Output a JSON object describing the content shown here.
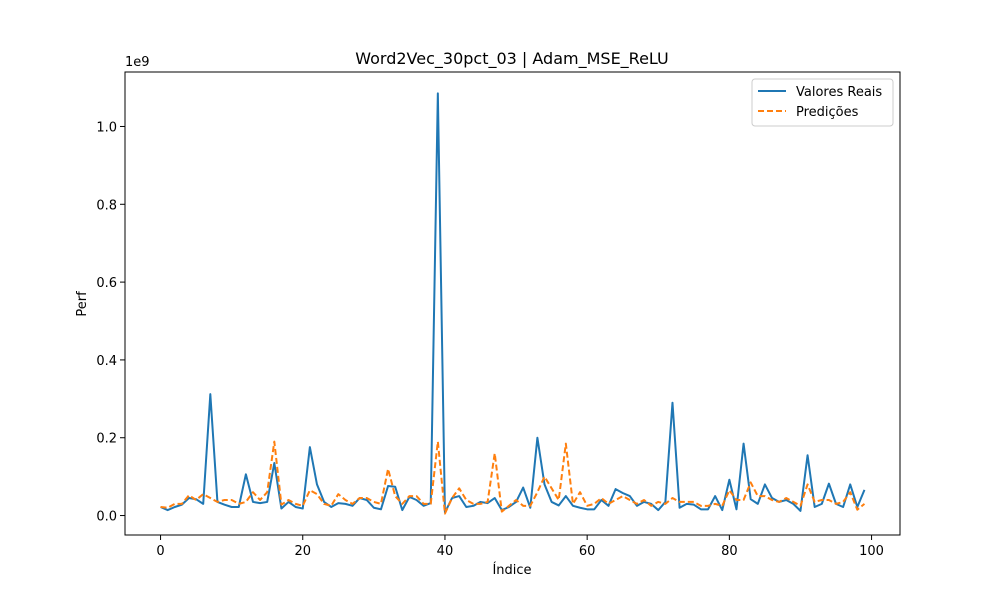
{
  "chart_data": {
    "type": "line",
    "title": "Word2Vec_30pct_03 | Adam_MSE_ReLU",
    "xlabel": "Índice",
    "ylabel": "Perf",
    "y_offset_label": "1e9",
    "xlim": [
      -5,
      104
    ],
    "ylim": [
      -0.05,
      1.14
    ],
    "x_ticks": [
      0,
      20,
      40,
      60,
      80,
      100
    ],
    "y_ticks": [
      0.0,
      0.2,
      0.4,
      0.6,
      0.8,
      1.0
    ],
    "x_tick_labels": [
      "0",
      "20",
      "40",
      "60",
      "80",
      "100"
    ],
    "y_tick_labels": [
      "0.0",
      "0.2",
      "0.4",
      "0.6",
      "0.8",
      "1.0"
    ],
    "legend_position": "top-right",
    "grid": false,
    "x": [
      0,
      1,
      2,
      3,
      4,
      5,
      6,
      7,
      8,
      9,
      10,
      11,
      12,
      13,
      14,
      15,
      16,
      17,
      18,
      19,
      20,
      21,
      22,
      23,
      24,
      25,
      26,
      27,
      28,
      29,
      30,
      31,
      32,
      33,
      34,
      35,
      36,
      37,
      38,
      39,
      40,
      41,
      42,
      43,
      44,
      45,
      46,
      47,
      48,
      49,
      50,
      51,
      52,
      53,
      54,
      55,
      56,
      57,
      58,
      59,
      60,
      61,
      62,
      63,
      64,
      65,
      66,
      67,
      68,
      69,
      70,
      71,
      72,
      73,
      74,
      75,
      76,
      77,
      78,
      79,
      80,
      81,
      82,
      83,
      84,
      85,
      86,
      87,
      88,
      89,
      90,
      91,
      92,
      93,
      94,
      95,
      96,
      97,
      98,
      99
    ],
    "series": [
      {
        "name": "Valores Reais",
        "color": "#1f77b4",
        "style": "solid",
        "values": [
          0.022,
          0.014,
          0.022,
          0.028,
          0.045,
          0.042,
          0.03,
          0.312,
          0.035,
          0.028,
          0.022,
          0.022,
          0.106,
          0.035,
          0.032,
          0.035,
          0.135,
          0.018,
          0.035,
          0.022,
          0.018,
          0.176,
          0.08,
          0.035,
          0.022,
          0.032,
          0.03,
          0.025,
          0.045,
          0.04,
          0.02,
          0.016,
          0.076,
          0.074,
          0.014,
          0.048,
          0.04,
          0.025,
          0.032,
          1.085,
          0.008,
          0.045,
          0.05,
          0.022,
          0.025,
          0.035,
          0.032,
          0.045,
          0.014,
          0.022,
          0.035,
          0.072,
          0.02,
          0.2,
          0.08,
          0.035,
          0.026,
          0.05,
          0.025,
          0.02,
          0.016,
          0.016,
          0.04,
          0.025,
          0.068,
          0.058,
          0.05,
          0.025,
          0.035,
          0.03,
          0.014,
          0.035,
          0.29,
          0.02,
          0.03,
          0.028,
          0.016,
          0.016,
          0.05,
          0.014,
          0.092,
          0.016,
          0.185,
          0.042,
          0.03,
          0.08,
          0.045,
          0.035,
          0.04,
          0.03,
          0.012,
          0.155,
          0.022,
          0.03,
          0.082,
          0.03,
          0.022,
          0.08,
          0.022,
          0.066
        ]
      },
      {
        "name": "Predições",
        "color": "#ff7f0e",
        "style": "dashed",
        "values": [
          0.022,
          0.02,
          0.03,
          0.03,
          0.052,
          0.04,
          0.055,
          0.045,
          0.035,
          0.04,
          0.04,
          0.03,
          0.035,
          0.06,
          0.04,
          0.06,
          0.19,
          0.028,
          0.04,
          0.03,
          0.025,
          0.065,
          0.055,
          0.03,
          0.025,
          0.055,
          0.04,
          0.03,
          0.045,
          0.045,
          0.035,
          0.03,
          0.12,
          0.05,
          0.03,
          0.05,
          0.05,
          0.03,
          0.03,
          0.19,
          0.005,
          0.045,
          0.07,
          0.04,
          0.03,
          0.03,
          0.035,
          0.16,
          0.01,
          0.025,
          0.04,
          0.025,
          0.025,
          0.06,
          0.1,
          0.07,
          0.04,
          0.185,
          0.03,
          0.06,
          0.025,
          0.03,
          0.045,
          0.03,
          0.04,
          0.05,
          0.04,
          0.03,
          0.04,
          0.025,
          0.035,
          0.03,
          0.045,
          0.035,
          0.035,
          0.035,
          0.025,
          0.025,
          0.03,
          0.025,
          0.065,
          0.04,
          0.04,
          0.085,
          0.05,
          0.05,
          0.04,
          0.035,
          0.045,
          0.035,
          0.025,
          0.08,
          0.035,
          0.04,
          0.04,
          0.03,
          0.035,
          0.06,
          0.015,
          0.03
        ]
      }
    ]
  }
}
